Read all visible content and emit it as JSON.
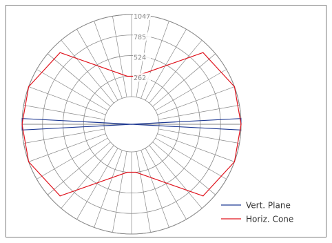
{
  "chart_data": {
    "type": "polar",
    "radial_axis": {
      "ticks": [
        262,
        524,
        785,
        1047
      ],
      "tick_labels": [
        "262",
        "524",
        "785",
        "1047"
      ],
      "max": 1047
    },
    "angular_grid_step_deg": 10,
    "grid": true,
    "legend_placement": "bottom-right",
    "series": [
      {
        "name": "Vert. Plane",
        "color": "#1f3a93",
        "points": [
          {
            "angle_deg": 0,
            "r": 1047
          },
          {
            "angle_deg": 3,
            "r": 1047
          },
          {
            "angle_deg": 180,
            "r": 0
          },
          {
            "angle_deg": 357,
            "r": 1047
          },
          {
            "angle_deg": 177,
            "r": 1047
          },
          {
            "angle_deg": 183,
            "r": 1047
          },
          {
            "angle_deg": 0,
            "r": 0
          }
        ]
      },
      {
        "name": "Horiz. Cone",
        "color": "#e0141e",
        "points": [
          {
            "angle_deg": 0,
            "r": 1047
          },
          {
            "angle_deg": 20,
            "r": 1047
          },
          {
            "angle_deg": 45,
            "r": 940
          },
          {
            "angle_deg": 85,
            "r": 262
          },
          {
            "angle_deg": 95,
            "r": 262
          },
          {
            "angle_deg": 135,
            "r": 940
          },
          {
            "angle_deg": 160,
            "r": 1047
          },
          {
            "angle_deg": 180,
            "r": 1047
          },
          {
            "angle_deg": 200,
            "r": 1047
          },
          {
            "angle_deg": 225,
            "r": 940
          },
          {
            "angle_deg": 265,
            "r": 262
          },
          {
            "angle_deg": 275,
            "r": 262
          },
          {
            "angle_deg": 315,
            "r": 940
          },
          {
            "angle_deg": 340,
            "r": 1047
          },
          {
            "angle_deg": 360,
            "r": 1047
          }
        ]
      }
    ]
  }
}
